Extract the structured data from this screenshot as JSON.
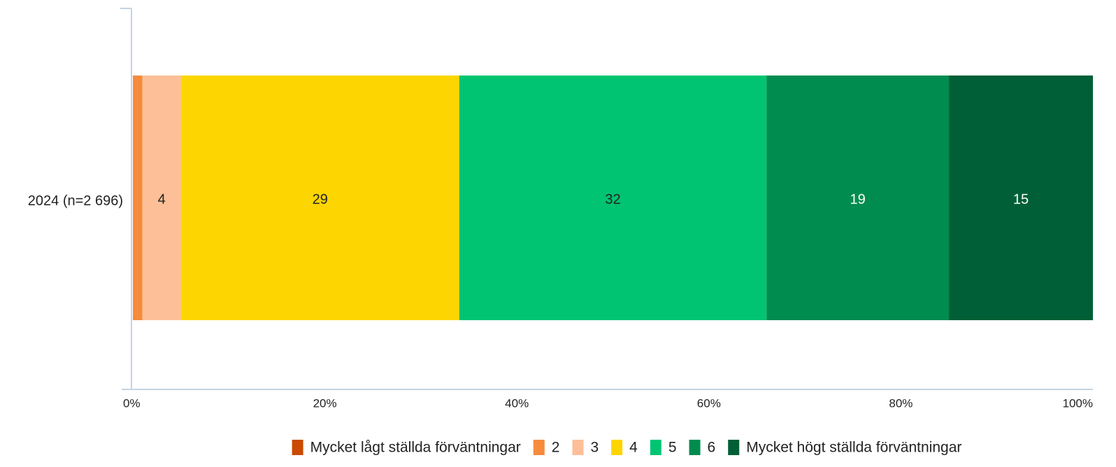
{
  "chart_data": {
    "type": "stacked_bar_horizontal",
    "categories": [
      "2024 (n=2 696)"
    ],
    "series": [
      {
        "name": "Mycket lågt ställda förväntningar",
        "color": "#c94a00",
        "values": [
          0
        ]
      },
      {
        "name": "2",
        "color": "#f68b3c",
        "values": [
          1
        ]
      },
      {
        "name": "3",
        "color": "#fdbf98",
        "values": [
          4
        ]
      },
      {
        "name": "4",
        "color": "#fdd500",
        "values": [
          29
        ]
      },
      {
        "name": "5",
        "color": "#00c472",
        "values": [
          32
        ]
      },
      {
        "name": "6",
        "color": "#008c4f",
        "values": [
          19
        ]
      },
      {
        "name": "Mycket högt ställda förväntningar",
        "color": "#005f36",
        "values": [
          15
        ]
      }
    ],
    "xlim": [
      0,
      100
    ],
    "xticks": [
      {
        "value": 0,
        "label": "0%"
      },
      {
        "value": 20,
        "label": "20%"
      },
      {
        "value": 40,
        "label": "40%"
      },
      {
        "value": 60,
        "label": "60%"
      },
      {
        "value": 80,
        "label": "80%"
      },
      {
        "value": 100,
        "label": "100%"
      }
    ],
    "legend": "bottom"
  }
}
